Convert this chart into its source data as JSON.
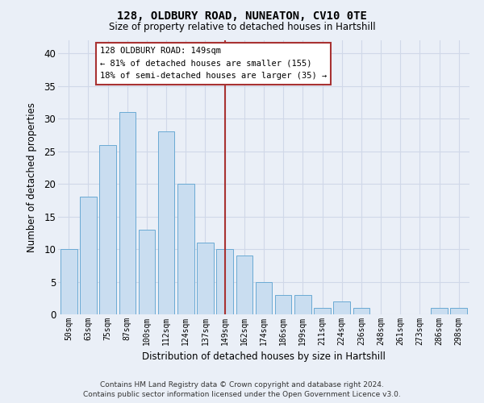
{
  "title1": "128, OLDBURY ROAD, NUNEATON, CV10 0TE",
  "title2": "Size of property relative to detached houses in Hartshill",
  "xlabel": "Distribution of detached houses by size in Hartshill",
  "ylabel": "Number of detached properties",
  "categories": [
    "50sqm",
    "63sqm",
    "75sqm",
    "87sqm",
    "100sqm",
    "112sqm",
    "124sqm",
    "137sqm",
    "149sqm",
    "162sqm",
    "174sqm",
    "186sqm",
    "199sqm",
    "211sqm",
    "224sqm",
    "236sqm",
    "248sqm",
    "261sqm",
    "273sqm",
    "286sqm",
    "298sqm"
  ],
  "values": [
    10,
    18,
    26,
    31,
    13,
    28,
    20,
    11,
    10,
    9,
    5,
    3,
    3,
    1,
    2,
    1,
    0,
    0,
    0,
    1,
    1
  ],
  "bar_color": "#c9ddf0",
  "bar_edge_color": "#6aaad4",
  "vline_x": 8,
  "vline_color": "#a83232",
  "annotation_line1": "128 OLDBURY ROAD: 149sqm",
  "annotation_line2": "← 81% of detached houses are smaller (155)",
  "annotation_line3": "18% of semi-detached houses are larger (35) →",
  "annotation_box_edgecolor": "#a83232",
  "annotation_bg": "#ffffff",
  "grid_color": "#d0d8e8",
  "bg_color": "#eaeff7",
  "ylim": [
    0,
    42
  ],
  "yticks": [
    0,
    5,
    10,
    15,
    20,
    25,
    30,
    35,
    40
  ],
  "footer1": "Contains HM Land Registry data © Crown copyright and database right 2024.",
  "footer2": "Contains public sector information licensed under the Open Government Licence v3.0."
}
